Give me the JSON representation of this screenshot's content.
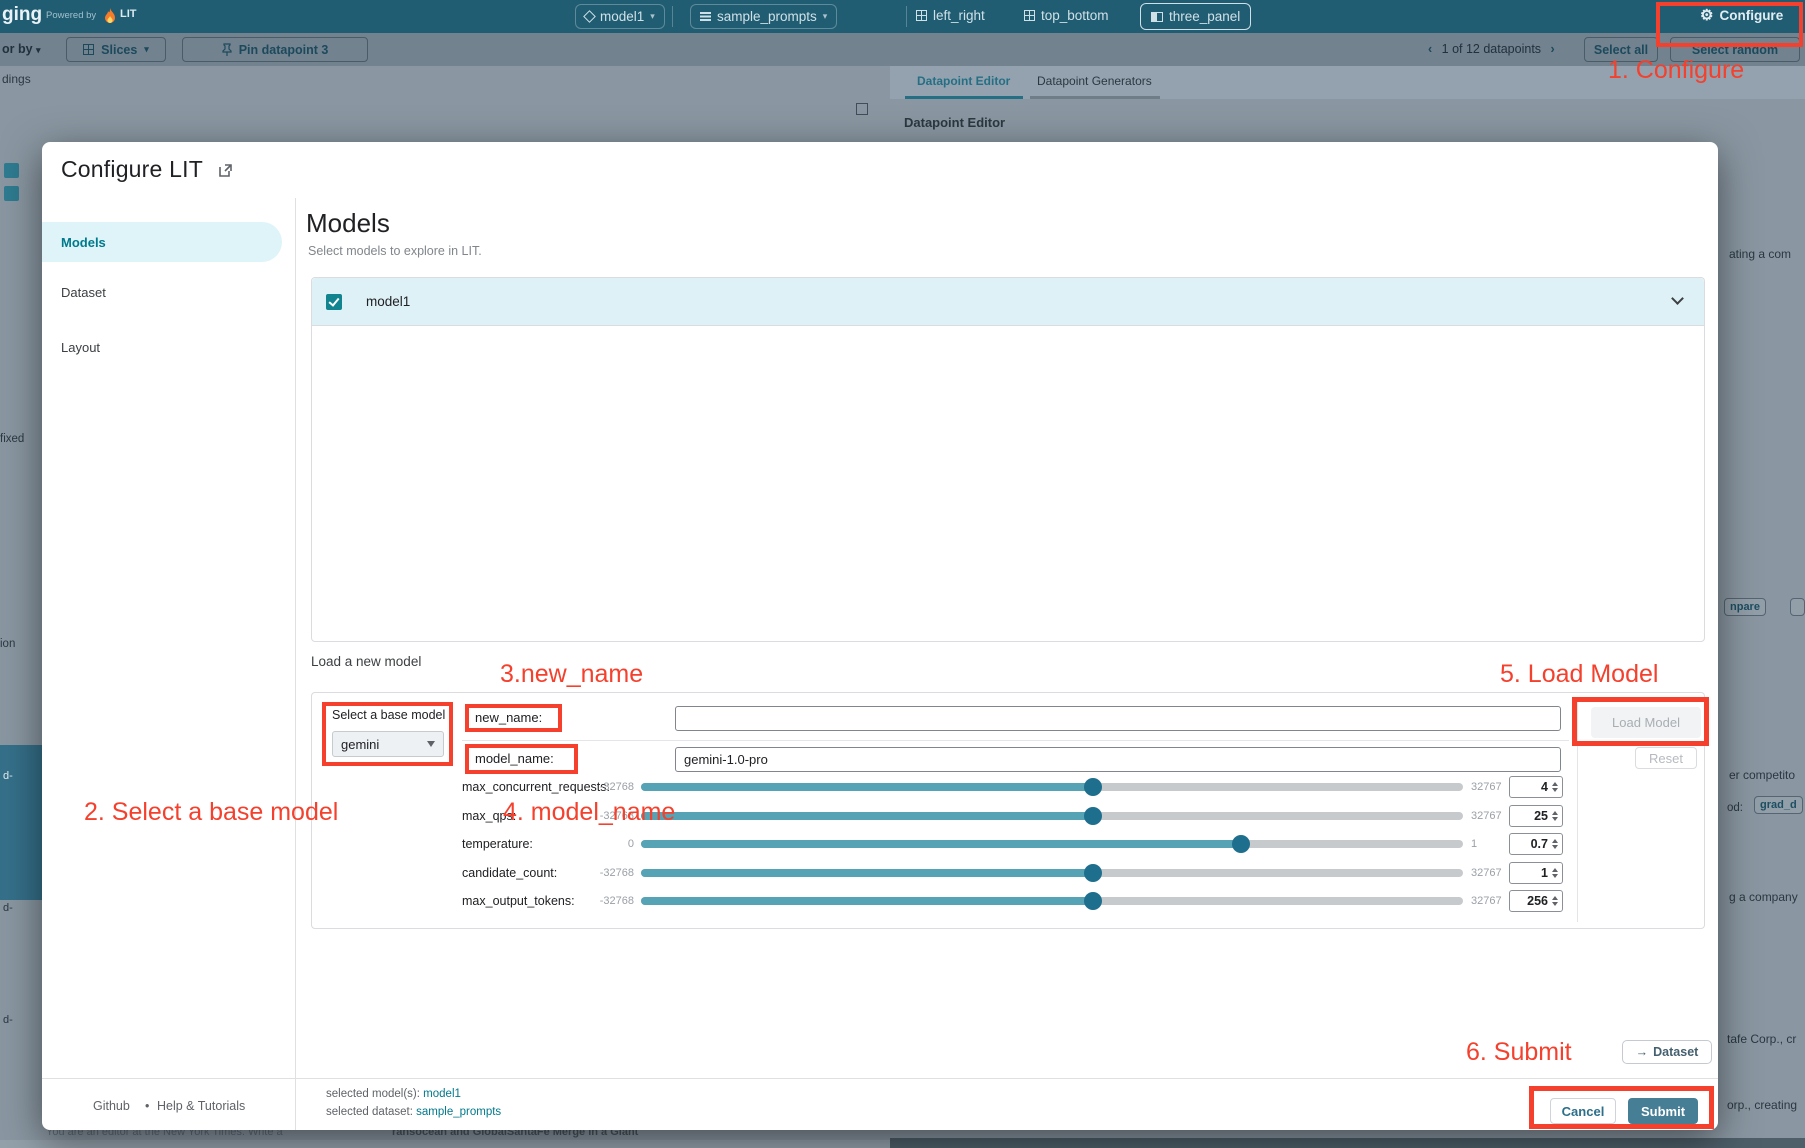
{
  "topbar": {
    "app_name_fragment": "ging",
    "powered_by": "Powered by",
    "lit_label": "LIT",
    "model_button": "model1",
    "dataset_button": "sample_prompts",
    "layouts": [
      "left_right",
      "top_bottom",
      "three_panel"
    ],
    "configure_label": "Configure"
  },
  "toolbar": {
    "color_by_fragment": "or by",
    "slices_label": "Slices",
    "pin_label": "Pin datapoint 3",
    "pagination": "1 of 12 datapoints",
    "prev_chevron": "‹",
    "next_chevron": "›",
    "select_all_label": "Select all",
    "select_random_label": "Select random"
  },
  "background": {
    "tabs": [
      "Datapoint Editor",
      "Datapoint Generators"
    ],
    "module_title": "Datapoint Editor",
    "left_fragments": {
      "f1": "dings",
      "f2": "fixed",
      "f3": "ion",
      "f4": "d-",
      "f5": "d-",
      "f6": "d-"
    },
    "right_fragments": {
      "r1": "ating a com",
      "r2": "npare",
      "r3": "er competito",
      "r4": "od:",
      "r5": "grad_d",
      "r6": "g a company",
      "r7": "tafe Corp., cr",
      "r8": "orp., creating"
    },
    "bottom_fragments": {
      "b1": "You are an editor at the New York Times. Write a",
      "b2": "ransocean and GlobalSantaFe Merge in a Giant"
    }
  },
  "modal": {
    "title": "Configure LIT",
    "sidebar": {
      "items": [
        {
          "label": "Models",
          "active": true
        },
        {
          "label": "Dataset",
          "active": false
        },
        {
          "label": "Layout",
          "active": false
        }
      ]
    },
    "heading": "Models",
    "subtitle": "Select models to explore in LIT.",
    "model_row": {
      "label": "model1",
      "checked": true
    },
    "load_section": {
      "title": "Load a new model",
      "base_model_label": "Select a base model",
      "base_model_value": "gemini",
      "new_name_label": "new_name:",
      "new_name_value": "",
      "model_name_label": "model_name:",
      "model_name_value": "gemini-1.0-pro",
      "sliders": [
        {
          "label": "max_concurrent_requests:",
          "min": "-32768",
          "max": "32767",
          "value": "4",
          "fraction": 0.55
        },
        {
          "label": "max_qps:",
          "min": "-32768",
          "max": "32767",
          "value": "25",
          "fraction": 0.55
        },
        {
          "label": "temperature:",
          "min": "0",
          "max": "1",
          "value": "0.7",
          "fraction": 0.73
        },
        {
          "label": "candidate_count:",
          "min": "-32768",
          "max": "32767",
          "value": "1",
          "fraction": 0.55
        },
        {
          "label": "max_output_tokens:",
          "min": "-32768",
          "max": "32767",
          "value": "256",
          "fraction": 0.55
        }
      ],
      "load_button": "Load Model",
      "reset_button": "Reset"
    },
    "dataset_nav_label": "Dataset",
    "dataset_nav_arrow": "→",
    "footer": {
      "github_label": "Github",
      "separator": "•",
      "help_label": "Help & Tutorials",
      "selected_model_label": "selected model(s):",
      "selected_model_value": "model1",
      "selected_dataset_label": "selected dataset:",
      "selected_dataset_value": "sample_prompts",
      "cancel_label": "Cancel",
      "submit_label": "Submit"
    }
  },
  "annotations": {
    "step1": "1. Configure",
    "step2": "2. Select a base model",
    "step3": "3.new_name",
    "step4": "4. model_name",
    "step5": "5. Load Model",
    "step6": "6. Submit"
  },
  "colors": {
    "annotation_red": "#f4402c",
    "accent_teal": "#00798c",
    "topbar_teal": "#215d72",
    "submit_teal": "#457e95",
    "slider_fill": "#55a3b4",
    "slider_handle": "#1e6e8e",
    "checkbox_teal": "#11848f",
    "active_pill_bg": "#def4f8",
    "model_row_bg": "#def1f6"
  }
}
